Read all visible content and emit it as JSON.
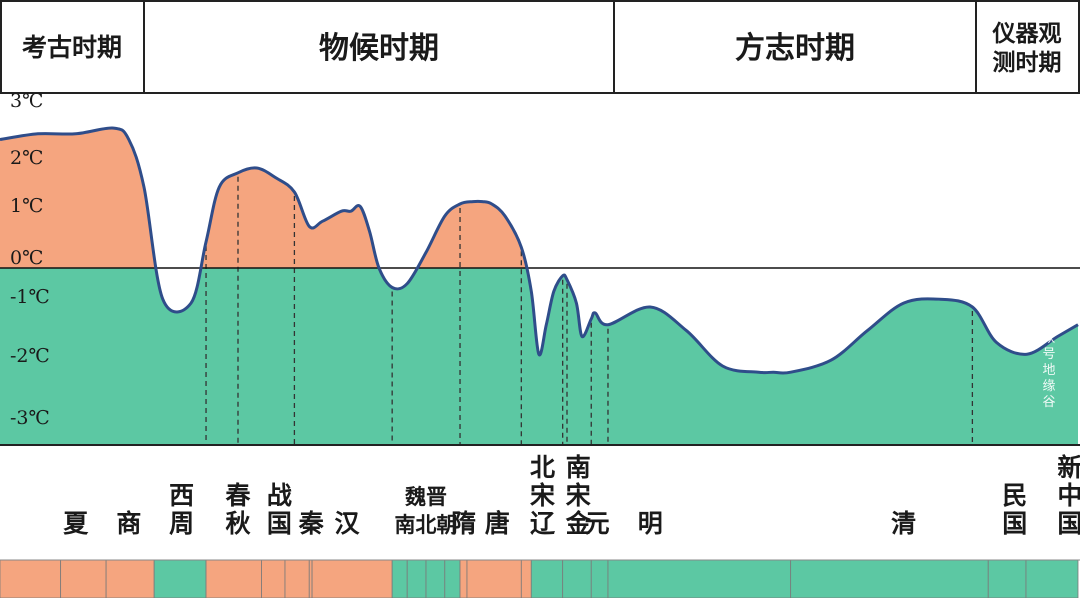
{
  "chart_data": {
    "type": "area",
    "headers": [
      {
        "label": "考古时期",
        "lines": [
          "考古时期"
        ]
      },
      {
        "label": "物候时期",
        "lines": [
          "物候时期"
        ]
      },
      {
        "label": "方志时期",
        "lines": [
          "方志时期"
        ]
      },
      {
        "label": "仪器观测时期",
        "lines": [
          "仪器观",
          "测时期"
        ]
      }
    ],
    "header_bounds_year": [
      -3000,
      -1100,
      1400,
      1900,
      2000
    ],
    "x_range_year": [
      -3000,
      2000
    ],
    "y_unit": "℃",
    "yticks": [
      {
        "value": 3,
        "label": "3℃"
      },
      {
        "value": 2,
        "label": "2℃"
      },
      {
        "value": 1,
        "label": "1℃"
      },
      {
        "value": 0,
        "label": "0℃"
      },
      {
        "value": -1,
        "label": "-1℃"
      },
      {
        "value": -2,
        "label": "-2℃"
      },
      {
        "value": -3,
        "label": "-3℃"
      }
    ],
    "ylim": [
      -3,
      3
    ],
    "series": [
      {
        "x": [
          -3000,
          -2500,
          -2000,
          -1500,
          -1300,
          -1100,
          -1000,
          -850,
          -770,
          -700,
          -600,
          -500,
          -400,
          -300,
          -221,
          -150,
          -50,
          0,
          50,
          100,
          150,
          220,
          300,
          400,
          500,
          581,
          650,
          700,
          750,
          820,
          907,
          960,
          1000,
          1040,
          1080,
          1127,
          1150,
          1200,
          1230,
          1279,
          1300,
          1368,
          1450,
          1500,
          1550,
          1600,
          1620,
          1644,
          1700,
          1750,
          1800,
          1850,
          1895,
          1920,
          1950,
          1980,
          2000
        ],
        "y": [
          2.5,
          2.6,
          2.6,
          2.7,
          2.5,
          1.6,
          -0.8,
          -0.9,
          0.5,
          1.6,
          1.9,
          2.0,
          1.8,
          1.5,
          0.8,
          0.9,
          1.1,
          1.1,
          1.2,
          0.7,
          0.0,
          -0.5,
          -0.4,
          0.3,
          1.0,
          1.25,
          1.3,
          1.3,
          1.25,
          1.0,
          0.4,
          -0.6,
          -1.8,
          -1.3,
          -0.6,
          -0.2,
          -0.3,
          -0.9,
          -1.5,
          -1.2,
          -1.1,
          -1.3,
          -1.0,
          -1.4,
          -2.0,
          -2.1,
          -2.1,
          -2.1,
          -1.9,
          -1.4,
          -0.9,
          -0.8,
          -1.0,
          -1.6,
          -1.8,
          -1.5,
          -1.3
        ]
      }
    ],
    "dashed_x": [
      -770,
      -600,
      -300,
      220,
      581,
      907,
      1127,
      1150,
      1279,
      1368,
      1895
    ],
    "dynasties": [
      {
        "label": "夏",
        "lines": [
          "夏"
        ],
        "x": -2000
      },
      {
        "label": "商",
        "lines": [
          "商"
        ],
        "x": -1300
      },
      {
        "label": "西周",
        "lines": [
          "西",
          "周"
        ],
        "x": -900
      },
      {
        "label": "春秋",
        "lines": [
          "春",
          "秋"
        ],
        "x": -600
      },
      {
        "label": "战国",
        "lines": [
          "战",
          "国"
        ],
        "x": -380
      },
      {
        "label": "秦",
        "lines": [
          "秦"
        ],
        "x": -210
      },
      {
        "label": "汉",
        "lines": [
          "汉"
        ],
        "x": -20
      },
      {
        "label": "魏晋南北朝",
        "lines": [
          "魏晋",
          "南北朝"
        ],
        "x": 400
      },
      {
        "label": "隋",
        "lines": [
          "隋"
        ],
        "x": 600
      },
      {
        "label": "唐",
        "lines": [
          "唐"
        ],
        "x": 780
      },
      {
        "label": "北宋辽",
        "lines": [
          "北",
          "宋",
          "辽"
        ],
        "x": 1020
      },
      {
        "label": "南宋金",
        "lines": [
          "南",
          "宋",
          "金"
        ],
        "x": 1210
      },
      {
        "label": "元",
        "lines": [
          "元"
        ],
        "x": 1310
      },
      {
        "label": "明",
        "lines": [
          "明"
        ],
        "x": 1450
      },
      {
        "label": "清",
        "lines": [
          "清"
        ],
        "x": 1800
      },
      {
        "label": "民国",
        "lines": [
          "民",
          "国"
        ],
        "x": 1938
      },
      {
        "label": "新中国",
        "lines": [
          "新",
          "中",
          "国"
        ],
        "x": 1992
      }
    ],
    "timeline_segments": [
      {
        "start": -3000,
        "end": -2200,
        "warm": true
      },
      {
        "start": -2200,
        "end": -1600,
        "warm": true
      },
      {
        "start": -1600,
        "end": -1046,
        "warm": true
      },
      {
        "start": -1046,
        "end": -770,
        "warm": false
      },
      {
        "start": -770,
        "end": -475,
        "warm": true
      },
      {
        "start": -475,
        "end": -350,
        "warm": true
      },
      {
        "start": -350,
        "end": -221,
        "warm": true
      },
      {
        "start": -221,
        "end": -206,
        "warm": true
      },
      {
        "start": -206,
        "end": 220,
        "warm": true
      },
      {
        "start": 220,
        "end": 300,
        "warm": false
      },
      {
        "start": 300,
        "end": 400,
        "warm": false
      },
      {
        "start": 400,
        "end": 500,
        "warm": false
      },
      {
        "start": 500,
        "end": 581,
        "warm": false
      },
      {
        "start": 581,
        "end": 618,
        "warm": true
      },
      {
        "start": 618,
        "end": 907,
        "warm": true
      },
      {
        "start": 907,
        "end": 960,
        "warm": true
      },
      {
        "start": 960,
        "end": 1127,
        "warm": false
      },
      {
        "start": 1127,
        "end": 1279,
        "warm": false
      },
      {
        "start": 1279,
        "end": 1368,
        "warm": false
      },
      {
        "start": 1368,
        "end": 1644,
        "warm": false
      },
      {
        "start": 1644,
        "end": 1912,
        "warm": false
      },
      {
        "start": 1912,
        "end": 1949,
        "warm": false
      },
      {
        "start": 1949,
        "end": 2000,
        "warm": false
      }
    ],
    "colors": {
      "warm": "#f5a57f",
      "cold": "#5cc8a3",
      "line": "#2f4d8a",
      "border": "#222222",
      "dash": "#333333"
    }
  },
  "watermark": "公众号地缘谷"
}
